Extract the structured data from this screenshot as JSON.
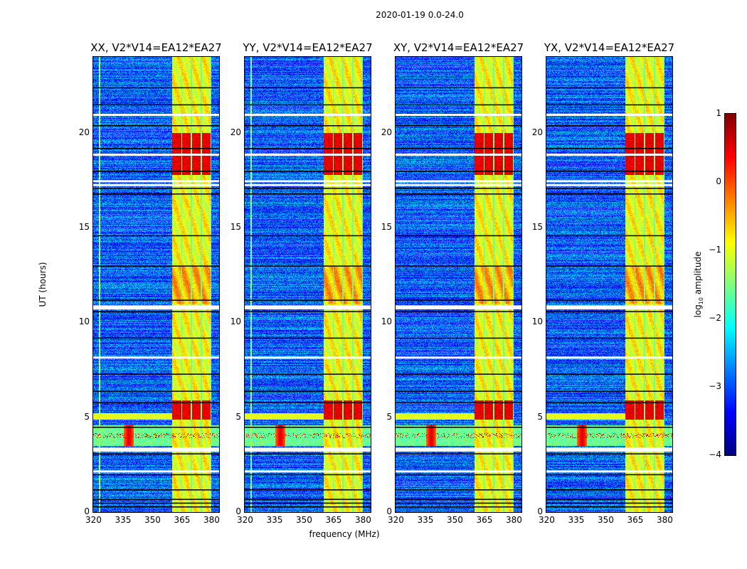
{
  "suptitle": "2020-01-19 0.0-24.0",
  "chart_data": {
    "type": "heatmap",
    "panels": [
      {
        "title": "XX, V2*V14=EA12*EA27"
      },
      {
        "title": "YY, V2*V14=EA12*EA27"
      },
      {
        "title": "XY, V2*V14=EA12*EA27"
      },
      {
        "title": "YX, V2*V14=EA12*EA27"
      }
    ],
    "xlabel": "frequency (MHz)",
    "ylabel": "UT (hours)",
    "xlim": [
      320,
      384
    ],
    "ylim": [
      0,
      24
    ],
    "xticks": [
      "320",
      "335",
      "350",
      "365",
      "380"
    ],
    "xtick_values": [
      320,
      335,
      350,
      365,
      380
    ],
    "yticks": [
      "0",
      "5",
      "10",
      "15",
      "20"
    ],
    "ytick_values": [
      0,
      5,
      10,
      15,
      20
    ],
    "colorbar": {
      "label": "log",
      "label_sub": "10",
      "label_rest": " amplitude",
      "range": [
        -4,
        1
      ],
      "ticks": [
        "1",
        "0",
        "−1",
        "−2",
        "−3",
        "−4"
      ],
      "tick_values": [
        1,
        0,
        -1,
        -2,
        -3,
        -4
      ],
      "colormap": "jet"
    },
    "features": {
      "background_level": -2.9,
      "rfi_band_mhz": [
        360,
        380
      ],
      "rfi_subbands_mhz": [
        [
          360,
          364.5
        ],
        [
          365,
          369.5
        ],
        [
          370,
          374.5
        ],
        [
          375,
          379.5
        ]
      ],
      "rfi_strong_hours": [
        [
          4.9,
          5.9
        ],
        [
          17.8,
          20.0
        ]
      ],
      "broadband_event_hours": [
        3.5,
        4.6
      ],
      "event_peak_mhz": 338,
      "flagged_white_hours": [
        2.2,
        3.3,
        3.4,
        8.2,
        10.8,
        10.9,
        17.3,
        17.5,
        18.9,
        21.0
      ],
      "flagged_black_hours": [
        0.3,
        0.5,
        0.7,
        1.2,
        2.0,
        3.1,
        4.5,
        5.8,
        6.4,
        7.3,
        9.2,
        10.6,
        11.2,
        13.0,
        14.6,
        16.8,
        17.1,
        18.0,
        19.2,
        20.4,
        21.5,
        22.4
      ]
    }
  }
}
